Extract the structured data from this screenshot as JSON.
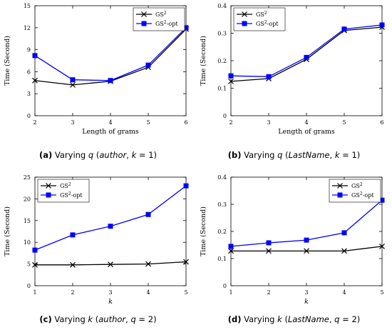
{
  "colors": {
    "gs2": "#000000",
    "gs2_opt": "#0000ff",
    "axis": "#000000"
  },
  "chart_data": [
    {
      "id": "a",
      "type": "line",
      "x": [
        2,
        3,
        4,
        5,
        6
      ],
      "xlim": [
        2,
        6
      ],
      "ylim": [
        0,
        15
      ],
      "xticks": [
        "2",
        "3",
        "4",
        "5",
        "6"
      ],
      "yticks": [
        "0",
        "3",
        "6",
        "9",
        "12",
        "15"
      ],
      "xlabel": "Length of grams",
      "ylabel": "Time (Second)",
      "legend_position": "top-right",
      "series": [
        {
          "name": "GS",
          "sup": "2",
          "suffix": "",
          "color": "#000000",
          "marker": "x",
          "values": [
            4.8,
            4.2,
            4.7,
            6.6,
            11.8
          ]
        },
        {
          "name": "GS",
          "sup": "2",
          "suffix": "-opt",
          "color": "#0000ff",
          "marker": "square",
          "values": [
            8.2,
            4.9,
            4.8,
            6.9,
            12.0
          ]
        }
      ],
      "caption": {
        "letter": "(a)",
        "pre": "Varying",
        "var": "q",
        "attr": "author",
        "param": "k",
        "value": "1"
      }
    },
    {
      "id": "b",
      "type": "line",
      "x": [
        2,
        3,
        4,
        5,
        6
      ],
      "xlim": [
        2,
        6
      ],
      "ylim": [
        0,
        0.4
      ],
      "xticks": [
        "2",
        "3",
        "4",
        "5",
        "6"
      ],
      "yticks": [
        "0",
        "0.1",
        "0.2",
        "0.3",
        "0.4"
      ],
      "xlabel": "Length of grams",
      "ylabel": "Time (Second)",
      "legend_position": "top-left",
      "series": [
        {
          "name": "GS",
          "sup": "2",
          "suffix": "",
          "color": "#000000",
          "marker": "x",
          "values": [
            0.125,
            0.135,
            0.205,
            0.31,
            0.322
          ]
        },
        {
          "name": "GS",
          "sup": "2",
          "suffix": "-opt",
          "color": "#0000ff",
          "marker": "square",
          "values": [
            0.145,
            0.142,
            0.212,
            0.315,
            0.33
          ]
        }
      ],
      "caption": {
        "letter": "(b)",
        "pre": "Varying",
        "var": "q",
        "attr": "LastName",
        "param": "k",
        "value": "1"
      }
    },
    {
      "id": "c",
      "type": "line",
      "x": [
        1,
        2,
        3,
        4,
        5
      ],
      "xlim": [
        1,
        5
      ],
      "ylim": [
        0,
        25
      ],
      "xticks": [
        "1",
        "2",
        "3",
        "4",
        "5"
      ],
      "yticks": [
        "0",
        "5",
        "10",
        "15",
        "20",
        "25"
      ],
      "xlabel": "k",
      "ylabel": "Time (Second)",
      "legend_position": "top-left",
      "series": [
        {
          "name": "GS",
          "sup": "2",
          "suffix": "",
          "color": "#000000",
          "marker": "x",
          "values": [
            4.8,
            4.8,
            4.9,
            5.0,
            5.5
          ]
        },
        {
          "name": "GS",
          "sup": "2",
          "suffix": "-opt",
          "color": "#0000ff",
          "marker": "square",
          "values": [
            8.2,
            11.7,
            13.7,
            16.4,
            23.0
          ]
        }
      ],
      "caption": {
        "letter": "(c)",
        "pre": "Varying",
        "var": "k",
        "attr": "author",
        "param": "q",
        "value": "2"
      }
    },
    {
      "id": "d",
      "type": "line",
      "x": [
        1,
        2,
        3,
        4,
        5
      ],
      "xlim": [
        1,
        5
      ],
      "ylim": [
        0,
        0.4
      ],
      "xticks": [
        "1",
        "2",
        "3",
        "4",
        "5"
      ],
      "yticks": [
        "0",
        "0.1",
        "0.2",
        "0.3",
        "0.4"
      ],
      "xlabel": "k",
      "ylabel": "Time (Second)",
      "legend_position": "top-right",
      "series": [
        {
          "name": "GS",
          "sup": "2",
          "suffix": "",
          "color": "#000000",
          "marker": "x",
          "values": [
            0.128,
            0.128,
            0.128,
            0.128,
            0.145
          ]
        },
        {
          "name": "GS",
          "sup": "2",
          "suffix": "-opt",
          "color": "#0000ff",
          "marker": "square",
          "values": [
            0.145,
            0.158,
            0.168,
            0.195,
            0.315
          ]
        }
      ],
      "caption": {
        "letter": "(d)",
        "pre": "Varying",
        "var": "k",
        "attr": "LastName",
        "param": "q",
        "value": "2"
      }
    }
  ]
}
